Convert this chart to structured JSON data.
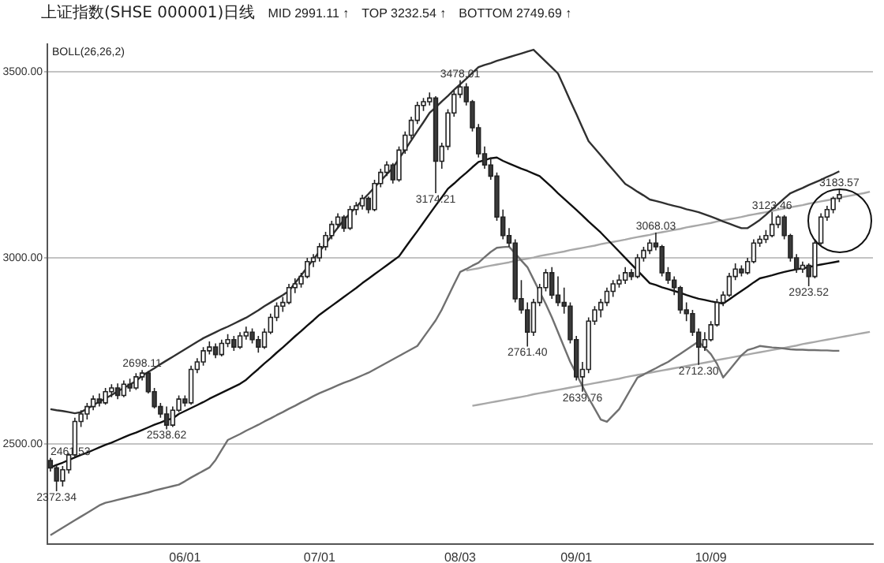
{
  "chart_data": {
    "type": "candlestick",
    "title": "上证指数(SHSE 000001)日线",
    "subtitle": "BOLL(26,26,2)",
    "categories": [
      null,
      null,
      null,
      null,
      null,
      null,
      null,
      null,
      null,
      null,
      null,
      null,
      null,
      null,
      null,
      null,
      null,
      null,
      null,
      null,
      null,
      null,
      "06/01",
      null,
      null,
      null,
      null,
      null,
      null,
      null,
      null,
      null,
      null,
      null,
      null,
      null,
      null,
      null,
      null,
      null,
      null,
      null,
      null,
      null,
      "07/01",
      null,
      null,
      null,
      null,
      null,
      null,
      null,
      null,
      null,
      null,
      null,
      null,
      null,
      null,
      null,
      null,
      null,
      null,
      null,
      null,
      null,
      null,
      "08/03",
      null,
      null,
      null,
      null,
      null,
      null,
      null,
      null,
      null,
      null,
      null,
      null,
      null,
      null,
      null,
      null,
      null,
      null,
      "09/01",
      null,
      null,
      null,
      null,
      null,
      null,
      null,
      null,
      null,
      null,
      null,
      null,
      null,
      null,
      null,
      null,
      null,
      null,
      null,
      null,
      null,
      "10/09",
      null,
      null,
      null,
      null,
      null,
      null,
      null,
      null,
      null,
      null,
      null,
      null,
      null,
      null,
      null,
      null,
      null,
      null,
      null,
      null,
      null,
      null,
      null,
      null,
      null,
      null
    ],
    "ohlc": [
      [
        2455,
        2461.53,
        2425,
        2435
      ],
      [
        2435,
        2445,
        2372.34,
        2400
      ],
      [
        2400,
        2440,
        2385,
        2430
      ],
      [
        2430,
        2475,
        2420,
        2470
      ],
      [
        2470,
        2570,
        2465,
        2560
      ],
      [
        2560,
        2590,
        2545,
        2580
      ],
      [
        2580,
        2610,
        2565,
        2600
      ],
      [
        2600,
        2630,
        2590,
        2620
      ],
      [
        2620,
        2635,
        2600,
        2610
      ],
      [
        2610,
        2650,
        2605,
        2640
      ],
      [
        2640,
        2660,
        2625,
        2650
      ],
      [
        2650,
        2662,
        2620,
        2630
      ],
      [
        2630,
        2670,
        2625,
        2660
      ],
      [
        2660,
        2675,
        2640,
        2650
      ],
      [
        2650,
        2690,
        2645,
        2680
      ],
      [
        2680,
        2698.11,
        2670,
        2690
      ],
      [
        2690,
        2695,
        2635,
        2640
      ],
      [
        2640,
        2650,
        2595,
        2600
      ],
      [
        2600,
        2610,
        2570,
        2580
      ],
      [
        2580,
        2600,
        2538.62,
        2550
      ],
      [
        2550,
        2600,
        2545,
        2590
      ],
      [
        2590,
        2630,
        2585,
        2620
      ],
      [
        2620,
        2630,
        2600,
        2610
      ],
      [
        2610,
        2710,
        2605,
        2700
      ],
      [
        2700,
        2730,
        2690,
        2720
      ],
      [
        2720,
        2760,
        2710,
        2750
      ],
      [
        2750,
        2775,
        2740,
        2760
      ],
      [
        2760,
        2770,
        2730,
        2740
      ],
      [
        2740,
        2780,
        2735,
        2770
      ],
      [
        2770,
        2795,
        2760,
        2780
      ],
      [
        2780,
        2790,
        2750,
        2760
      ],
      [
        2760,
        2800,
        2755,
        2790
      ],
      [
        2790,
        2815,
        2780,
        2800
      ],
      [
        2800,
        2810,
        2770,
        2780
      ],
      [
        2780,
        2790,
        2745,
        2760
      ],
      [
        2760,
        2810,
        2755,
        2800
      ],
      [
        2800,
        2850,
        2795,
        2840
      ],
      [
        2840,
        2880,
        2830,
        2870
      ],
      [
        2870,
        2895,
        2855,
        2880
      ],
      [
        2880,
        2930,
        2875,
        2920
      ],
      [
        2920,
        2945,
        2905,
        2930
      ],
      [
        2930,
        2960,
        2920,
        2950
      ],
      [
        2950,
        3000,
        2945,
        2990
      ],
      [
        2990,
        3010,
        2975,
        3000
      ],
      [
        3000,
        3040,
        2990,
        3030
      ],
      [
        3030,
        3070,
        3020,
        3060
      ],
      [
        3060,
        3100,
        3050,
        3090
      ],
      [
        3090,
        3120,
        3080,
        3110
      ],
      [
        3110,
        3115,
        3070,
        3080
      ],
      [
        3080,
        3140,
        3075,
        3130
      ],
      [
        3130,
        3150,
        3115,
        3140
      ],
      [
        3140,
        3170,
        3130,
        3160
      ],
      [
        3160,
        3165,
        3120,
        3130
      ],
      [
        3130,
        3210,
        3125,
        3200
      ],
      [
        3200,
        3240,
        3190,
        3230
      ],
      [
        3230,
        3260,
        3220,
        3250
      ],
      [
        3250,
        3255,
        3200,
        3210
      ],
      [
        3210,
        3300,
        3205,
        3290
      ],
      [
        3290,
        3340,
        3280,
        3330
      ],
      [
        3330,
        3380,
        3320,
        3370
      ],
      [
        3370,
        3420,
        3360,
        3410
      ],
      [
        3410,
        3430,
        3395,
        3420
      ],
      [
        3420,
        3445,
        3410,
        3430
      ],
      [
        3430,
        3435,
        3174.21,
        3260
      ],
      [
        3260,
        3310,
        3240,
        3300
      ],
      [
        3300,
        3400,
        3290,
        3390
      ],
      [
        3390,
        3450,
        3380,
        3440
      ],
      [
        3440,
        3478.01,
        3430,
        3460
      ],
      [
        3460,
        3470,
        3410,
        3420
      ],
      [
        3420,
        3425,
        3340,
        3350
      ],
      [
        3350,
        3360,
        3270,
        3280
      ],
      [
        3280,
        3300,
        3240,
        3250
      ],
      [
        3250,
        3270,
        3210,
        3220
      ],
      [
        3220,
        3230,
        3100,
        3110
      ],
      [
        3110,
        3130,
        3050,
        3060
      ],
      [
        3060,
        3080,
        3030,
        3040
      ],
      [
        3040,
        3050,
        2880,
        2890
      ],
      [
        2890,
        2940,
        2850,
        2860
      ],
      [
        2860,
        2880,
        2761.4,
        2800
      ],
      [
        2800,
        2890,
        2790,
        2880
      ],
      [
        2880,
        2930,
        2870,
        2920
      ],
      [
        2920,
        2970,
        2910,
        2960
      ],
      [
        2960,
        2975,
        2890,
        2900
      ],
      [
        2900,
        2950,
        2870,
        2880
      ],
      [
        2880,
        2920,
        2850,
        2870
      ],
      [
        2870,
        2880,
        2770,
        2780
      ],
      [
        2780,
        2790,
        2670,
        2680
      ],
      [
        2680,
        2720,
        2639.76,
        2700
      ],
      [
        2700,
        2840,
        2690,
        2830
      ],
      [
        2830,
        2870,
        2820,
        2860
      ],
      [
        2860,
        2890,
        2840,
        2880
      ],
      [
        2880,
        2920,
        2870,
        2910
      ],
      [
        2910,
        2940,
        2895,
        2930
      ],
      [
        2930,
        2955,
        2920,
        2940
      ],
      [
        2940,
        2975,
        2930,
        2960
      ],
      [
        2960,
        2970,
        2940,
        2950
      ],
      [
        2950,
        3010,
        2945,
        3000
      ],
      [
        3000,
        3030,
        2990,
        3020
      ],
      [
        3020,
        3050,
        3010,
        3040
      ],
      [
        3040,
        3068.03,
        3020,
        3030
      ],
      [
        3030,
        3035,
        2950,
        2960
      ],
      [
        2960,
        2975,
        2930,
        2940
      ],
      [
        2940,
        2950,
        2900,
        2920
      ],
      [
        2920,
        2925,
        2850,
        2860
      ],
      [
        2860,
        2880,
        2830,
        2850
      ],
      [
        2850,
        2860,
        2790,
        2800
      ],
      [
        2800,
        2810,
        2712.3,
        2760
      ],
      [
        2760,
        2800,
        2750,
        2780
      ],
      [
        2780,
        2830,
        2775,
        2820
      ],
      [
        2820,
        2890,
        2815,
        2880
      ],
      [
        2880,
        2910,
        2870,
        2900
      ],
      [
        2900,
        2960,
        2895,
        2950
      ],
      [
        2950,
        2985,
        2940,
        2970
      ],
      [
        2970,
        2980,
        2950,
        2960
      ],
      [
        2960,
        3000,
        2955,
        2990
      ],
      [
        2990,
        3050,
        2985,
        3040
      ],
      [
        3040,
        3060,
        3030,
        3050
      ],
      [
        3050,
        3075,
        3040,
        3060
      ],
      [
        3060,
        3123.46,
        3055,
        3090
      ],
      [
        3090,
        3115,
        3080,
        3110
      ],
      [
        3110,
        3115,
        3050,
        3060
      ],
      [
        3060,
        3065,
        2990,
        3000
      ],
      [
        3000,
        3010,
        2960,
        2970
      ],
      [
        2970,
        2990,
        2960,
        2980
      ],
      [
        2980,
        2985,
        2923.52,
        2950
      ],
      [
        2950,
        3050,
        2945,
        3040
      ],
      [
        3040,
        3120,
        3035,
        3110
      ],
      [
        3110,
        3140,
        3100,
        3130
      ],
      [
        3130,
        3165,
        3120,
        3160
      ],
      [
        3160,
        3183.57,
        3150,
        3170
      ],
      null,
      null,
      null,
      null,
      null
    ],
    "series": [
      {
        "type": "line",
        "color": "#303030",
        "values": [
          2593,
          2590,
          2588,
          2585,
          2582,
          2585,
          2594,
          2604,
          2613,
          2622,
          2631,
          2641,
          2650,
          2659,
          2669,
          2683,
          2693,
          2703,
          2714,
          2724,
          2734,
          2744,
          2754,
          2764,
          2774,
          2784,
          2792,
          2800,
          2808,
          2815,
          2823,
          2831,
          2839,
          2849,
          2859,
          2870,
          2880,
          2890,
          2900,
          2911,
          2932,
          2953,
          2975,
          2996,
          3017,
          3038,
          3060,
          3081,
          3102,
          3120,
          3137,
          3155,
          3172,
          3190,
          3207,
          3225,
          3242,
          3267,
          3291,
          3316,
          3341,
          3365,
          3390,
          3405,
          3421,
          3436,
          3452,
          3467,
          3482,
          3498,
          3513,
          3519,
          3524,
          3530,
          3535,
          3540,
          3545,
          3550,
          3555,
          3560,
          3544,
          3528,
          3512,
          3496,
          3460,
          3423,
          3387,
          3350,
          3314,
          3295,
          3276,
          3256,
          3237,
          3218,
          3199,
          3189,
          3178,
          3168,
          3157,
          3153,
          3149,
          3144,
          3140,
          3136,
          3131,
          3127,
          3123,
          3117,
          3111,
          3105,
          3098,
          3092,
          3086,
          3080,
          3080,
          3091,
          3102,
          3116,
          3131,
          3145,
          3160,
          3174,
          3181,
          3188,
          3196,
          3203,
          3210,
          3218,
          3225,
          3233,
          null,
          null,
          null,
          null,
          null
        ]
      },
      {
        "type": "line",
        "color": "#101010",
        "values": [
          2436,
          2443,
          2449,
          2456,
          2463,
          2470,
          2476,
          2483,
          2490,
          2497,
          2503,
          2510,
          2517,
          2524,
          2530,
          2537,
          2544,
          2551,
          2557,
          2564,
          2568,
          2580,
          2588,
          2596,
          2604,
          2612,
          2621,
          2629,
          2637,
          2645,
          2653,
          2661,
          2672,
          2687,
          2701,
          2716,
          2730,
          2745,
          2759,
          2774,
          2789,
          2803,
          2818,
          2832,
          2847,
          2859,
          2871,
          2883,
          2895,
          2907,
          2919,
          2932,
          2944,
          2956,
          2968,
          2980,
          2992,
          3004,
          3027,
          3050,
          3072,
          3095,
          3118,
          3141,
          3163,
          3186,
          3200,
          3215,
          3229,
          3244,
          3258,
          3263,
          3268,
          3270,
          3261,
          3254,
          3247,
          3240,
          3234,
          3227,
          3220,
          3205,
          3190,
          3174,
          3159,
          3144,
          3129,
          3114,
          3098,
          3083,
          3068,
          3051,
          3034,
          3017,
          3000,
          2983,
          2966,
          2949,
          2932,
          2927,
          2921,
          2916,
          2911,
          2906,
          2900,
          2895,
          2890,
          2887,
          2883,
          2880,
          2877,
          2888,
          2900,
          2911,
          2922,
          2934,
          2945,
          2949,
          2953,
          2958,
          2962,
          2966,
          2969,
          2972,
          2975,
          2979,
          2982,
          2985,
          2988,
          2991,
          null,
          null,
          null,
          null,
          null
        ]
      },
      {
        "type": "line",
        "color": "#707070",
        "values": [
          2254,
          2264,
          2274,
          2284,
          2294,
          2304,
          2314,
          2324,
          2334,
          2341,
          2345,
          2349,
          2353,
          2357,
          2361,
          2365,
          2369,
          2374,
          2378,
          2382,
          2386,
          2390,
          2399,
          2409,
          2418,
          2427,
          2436,
          2456,
          2483,
          2510,
          2518,
          2526,
          2535,
          2543,
          2551,
          2560,
          2568,
          2577,
          2585,
          2594,
          2602,
          2611,
          2619,
          2628,
          2636,
          2643,
          2650,
          2657,
          2664,
          2670,
          2677,
          2684,
          2691,
          2700,
          2709,
          2718,
          2727,
          2736,
          2745,
          2754,
          2763,
          2786,
          2809,
          2832,
          2861,
          2895,
          2929,
          2962,
          2970,
          2979,
          2987,
          3002,
          3016,
          3027,
          3029,
          3030,
          3012,
          2993,
          2975,
          2942,
          2909,
          2876,
          2840,
          2800,
          2760,
          2720,
          2688,
          2655,
          2623,
          2594,
          2565,
          2559,
          2576,
          2593,
          2621,
          2650,
          2678,
          2686,
          2695,
          2703,
          2712,
          2720,
          2731,
          2742,
          2753,
          2764,
          2775,
          2758,
          2741,
          2715,
          2678,
          2698,
          2718,
          2738,
          2752,
          2757,
          2763,
          2761,
          2759,
          2758,
          2756,
          2754,
          2753,
          2753,
          2752,
          2752,
          2751,
          2751,
          2750,
          2750,
          null,
          null,
          null,
          null,
          null
        ]
      },
      {
        "type": "line",
        "color": "#a8a8a8",
        "values": [
          null,
          null,
          null,
          null,
          null,
          null,
          null,
          null,
          null,
          null,
          null,
          null,
          null,
          null,
          null,
          null,
          null,
          null,
          null,
          null,
          null,
          null,
          null,
          null,
          null,
          null,
          null,
          null,
          null,
          null,
          null,
          null,
          null,
          null,
          null,
          null,
          null,
          null,
          null,
          null,
          null,
          null,
          null,
          null,
          null,
          null,
          null,
          null,
          null,
          null,
          null,
          null,
          null,
          null,
          null,
          null,
          null,
          null,
          null,
          null,
          null,
          null,
          null,
          null,
          null,
          null,
          null,
          null,
          2966,
          2969,
          2972,
          2976,
          2979,
          2982,
          2985,
          2988,
          2992,
          2995,
          2998,
          3001,
          3005,
          3008,
          3011,
          3014,
          3017,
          3021,
          3024,
          3027,
          3030,
          3033,
          3037,
          3040,
          3043,
          3046,
          3049,
          3053,
          3056,
          3059,
          3062,
          3066,
          3069,
          3072,
          3075,
          3078,
          3082,
          3085,
          3088,
          3091,
          3094,
          3098,
          3101,
          3104,
          3107,
          3110,
          3114,
          3117,
          3120,
          3123,
          3126,
          3130,
          3133,
          3136,
          3139,
          3142,
          3146,
          3149,
          3152,
          3155,
          3158,
          3162,
          3165,
          3168,
          3171,
          3174,
          3178
        ]
      },
      {
        "type": "line",
        "color": "#a8a8a8",
        "values": [
          null,
          null,
          null,
          null,
          null,
          null,
          null,
          null,
          null,
          null,
          null,
          null,
          null,
          null,
          null,
          null,
          null,
          null,
          null,
          null,
          null,
          null,
          null,
          null,
          null,
          null,
          null,
          null,
          null,
          null,
          null,
          null,
          null,
          null,
          null,
          null,
          null,
          null,
          null,
          null,
          null,
          null,
          null,
          null,
          null,
          null,
          null,
          null,
          null,
          null,
          null,
          null,
          null,
          null,
          null,
          null,
          null,
          null,
          null,
          null,
          null,
          null,
          null,
          null,
          null,
          null,
          null,
          null,
          null,
          2602,
          2605,
          2608,
          2611,
          2614,
          2617,
          2620,
          2623,
          2626,
          2629,
          2633,
          2636,
          2639,
          2642,
          2645,
          2648,
          2651,
          2654,
          2657,
          2660,
          2663,
          2666,
          2669,
          2672,
          2675,
          2679,
          2682,
          2685,
          2688,
          2691,
          2694,
          2697,
          2700,
          2703,
          2706,
          2709,
          2712,
          2715,
          2718,
          2721,
          2725,
          2728,
          2731,
          2734,
          2737,
          2740,
          2743,
          2746,
          2749,
          2752,
          2755,
          2758,
          2761,
          2764,
          2768,
          2771,
          2774,
          2777,
          2780,
          2783,
          2786,
          2789,
          2792,
          2795,
          2798,
          2801
        ]
      }
    ],
    "ylim": [
      2230,
      3575
    ],
    "yticks": [
      {
        "value": 2500,
        "label": "2500.00"
      },
      {
        "value": 3000,
        "label": "3000.00"
      },
      {
        "value": 3500,
        "label": "3500.00"
      }
    ],
    "grid": "y",
    "legend": false,
    "marker": "none",
    "annotations": [
      "MID 2991.11 ↑",
      "TOP 3232.54 ↑",
      "BOTTOM 2749.69 ↑",
      {
        "text": "2461.53",
        "y": 2461.53
      },
      {
        "text": "2372.34",
        "y": 2372.34
      },
      {
        "text": "2698.11",
        "y": 2698.11
      },
      {
        "text": "2538.62",
        "y": 2538.62
      },
      {
        "text": "3174.21",
        "y": 3174.21
      },
      {
        "text": "3478.01",
        "y": 3478.01
      },
      {
        "text": "2761.40",
        "y": 2761.4
      },
      {
        "text": "2639.76",
        "y": 2639.76
      },
      {
        "text": "3068.03",
        "y": 3068.03
      },
      {
        "text": "2712.30",
        "y": 2712.3
      },
      {
        "text": "3123.46",
        "y": 3123.46
      },
      {
        "text": "2923.52",
        "y": 2923.52
      },
      {
        "text": "3183.57",
        "y": 3183.57
      }
    ]
  }
}
